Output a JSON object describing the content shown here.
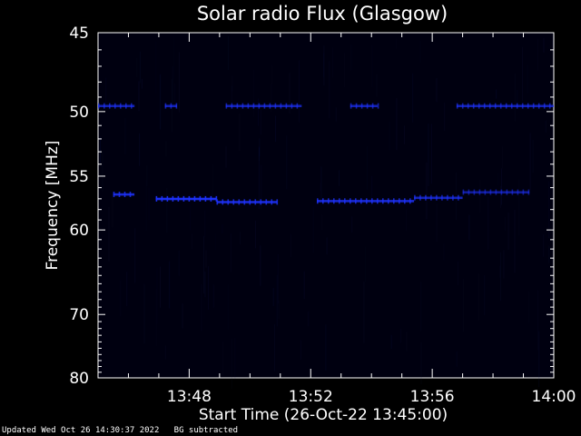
{
  "chart_data": {
    "type": "heatmap",
    "title": "Solar radio Flux (Glasgow)",
    "xlabel": "Start Time (26-Oct-22 13:45:00)",
    "ylabel": "Frequency [MHz]",
    "x_ticks": [
      "13:48",
      "13:52",
      "13:56",
      "14:00"
    ],
    "y_ticks": [
      "45",
      "50",
      "55",
      "60",
      "70",
      "80"
    ],
    "x_range": [
      "13:45:00",
      "14:00:00"
    ],
    "y_range": [
      45,
      80
    ],
    "y_scale": "reciprocal",
    "background_color": "#000000",
    "plot_color": "#000010",
    "signal_color": "#1e32ff",
    "bands": [
      {
        "freq_mhz": 49.6,
        "segments": [
          [
            45.0,
            46.2
          ],
          [
            47.2,
            47.6
          ],
          [
            49.2,
            51.7
          ],
          [
            53.3,
            54.2
          ],
          [
            56.8,
            60.0
          ]
        ],
        "intensity": 0.55
      },
      {
        "freq_mhz": 56.6,
        "segments": [
          [
            45.5,
            46.2
          ]
        ],
        "intensity": 0.8
      },
      {
        "freq_mhz": 57.0,
        "segments": [
          [
            46.9,
            48.9
          ]
        ],
        "intensity": 1.0
      },
      {
        "freq_mhz": 57.3,
        "segments": [
          [
            48.9,
            50.9
          ]
        ],
        "intensity": 0.8
      },
      {
        "freq_mhz": 57.2,
        "segments": [
          [
            52.2,
            55.4
          ]
        ],
        "intensity": 0.75
      },
      {
        "freq_mhz": 56.9,
        "segments": [
          [
            55.4,
            57.0
          ]
        ],
        "intensity": 0.6
      },
      {
        "freq_mhz": 56.4,
        "segments": [
          [
            57.0,
            59.2
          ]
        ],
        "intensity": 0.35
      }
    ]
  },
  "footer": {
    "updated": "Updated Wed Oct 26 14:30:37 2022",
    "note": "BG subtracted"
  }
}
